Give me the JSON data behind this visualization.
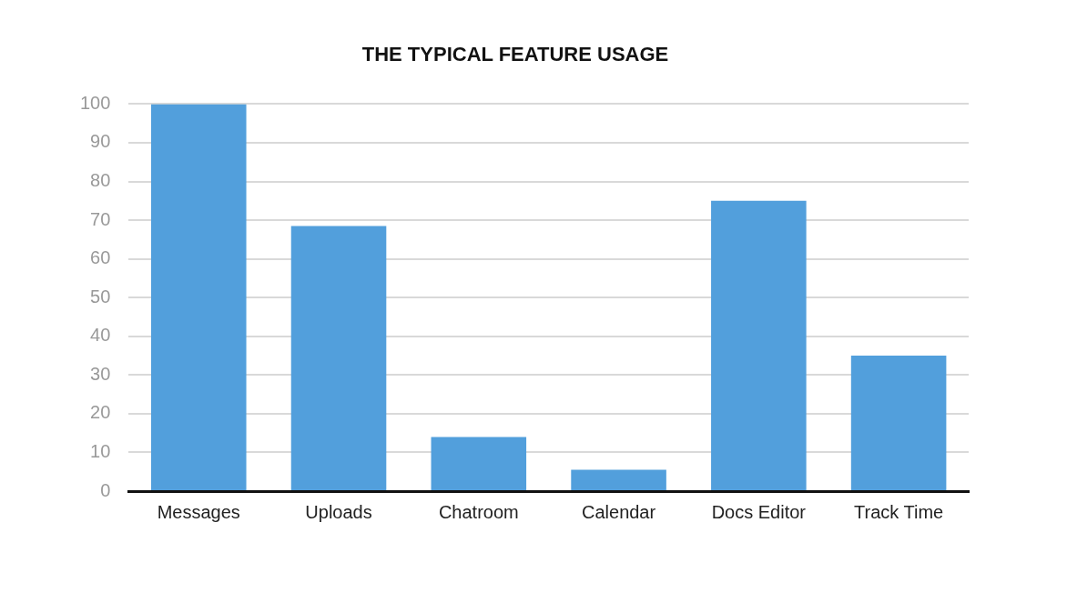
{
  "chart_data": {
    "type": "bar",
    "title": "THE TYPICAL FEATURE USAGE",
    "categories": [
      "Messages",
      "Uploads",
      "Chatroom",
      "Calendar",
      "Docs Editor",
      "Track Time"
    ],
    "values": [
      100,
      68.5,
      14,
      5.5,
      75,
      35
    ],
    "color": "#529fdc",
    "ylim": [
      0,
      100
    ],
    "yticks": [
      0,
      10,
      20,
      30,
      40,
      50,
      60,
      70,
      80,
      90,
      100
    ],
    "grid": "y",
    "legend": false
  }
}
